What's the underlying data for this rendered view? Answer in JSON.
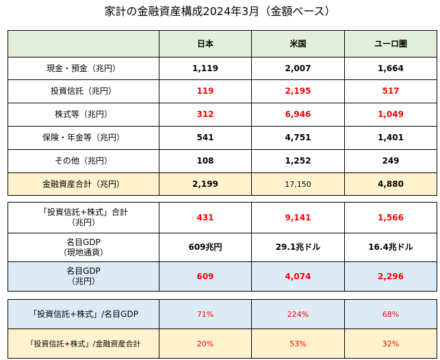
{
  "title": "家計の金融資産構成2024年3月（金額ベース）",
  "header": {
    "c0": "",
    "c1": "日本",
    "c2": "米国",
    "c3": "ユーロ圏"
  },
  "table1": [
    {
      "label": "現金・預金（兆円）",
      "jp": "1,119",
      "us": "2,007",
      "eu": "1,664"
    },
    {
      "label": "投資信託（兆円）",
      "jp": "119",
      "us": "2,195",
      "eu": "517"
    },
    {
      "label": "株式等（兆円）",
      "jp": "312",
      "us": "6,946",
      "eu": "1,049"
    },
    {
      "label": "保険・年金等（兆円）",
      "jp": "541",
      "us": "4,751",
      "eu": "1,401"
    },
    {
      "label": "その他（兆円）",
      "jp": "108",
      "us": "1,252",
      "eu": "249"
    },
    {
      "label": "金融資産合計（兆円）",
      "jp": "2,199",
      "us": "17,150",
      "eu": "4,880"
    }
  ],
  "table2": [
    {
      "label1": "「投資信託+株式」合計",
      "label2": "（兆円）",
      "jp": "431",
      "us": "9,141",
      "eu": "1,566"
    },
    {
      "label1": "名目GDP",
      "label2": "（現地通貨）",
      "jp": "609兆円",
      "us": "29.1兆ドル",
      "eu": "16.4兆ドル"
    },
    {
      "label1": "名目GDP",
      "label2": "（兆円）",
      "jp": "609",
      "us": "4,074",
      "eu": "2,296"
    }
  ],
  "table3": [
    {
      "label": "「投資信託+株式」/名目GDP",
      "jp": "71%",
      "us": "224%",
      "eu": "68%"
    },
    {
      "label": "「投資信託+株式」/金融資産合計",
      "jp": "20%",
      "us": "53%",
      "eu": "32%"
    }
  ],
  "colors": {
    "header_bg": "#e2efda",
    "total_bg": "#fff2cc",
    "gdp_bg": "#ddebf7",
    "highlight": "#ff0000"
  }
}
